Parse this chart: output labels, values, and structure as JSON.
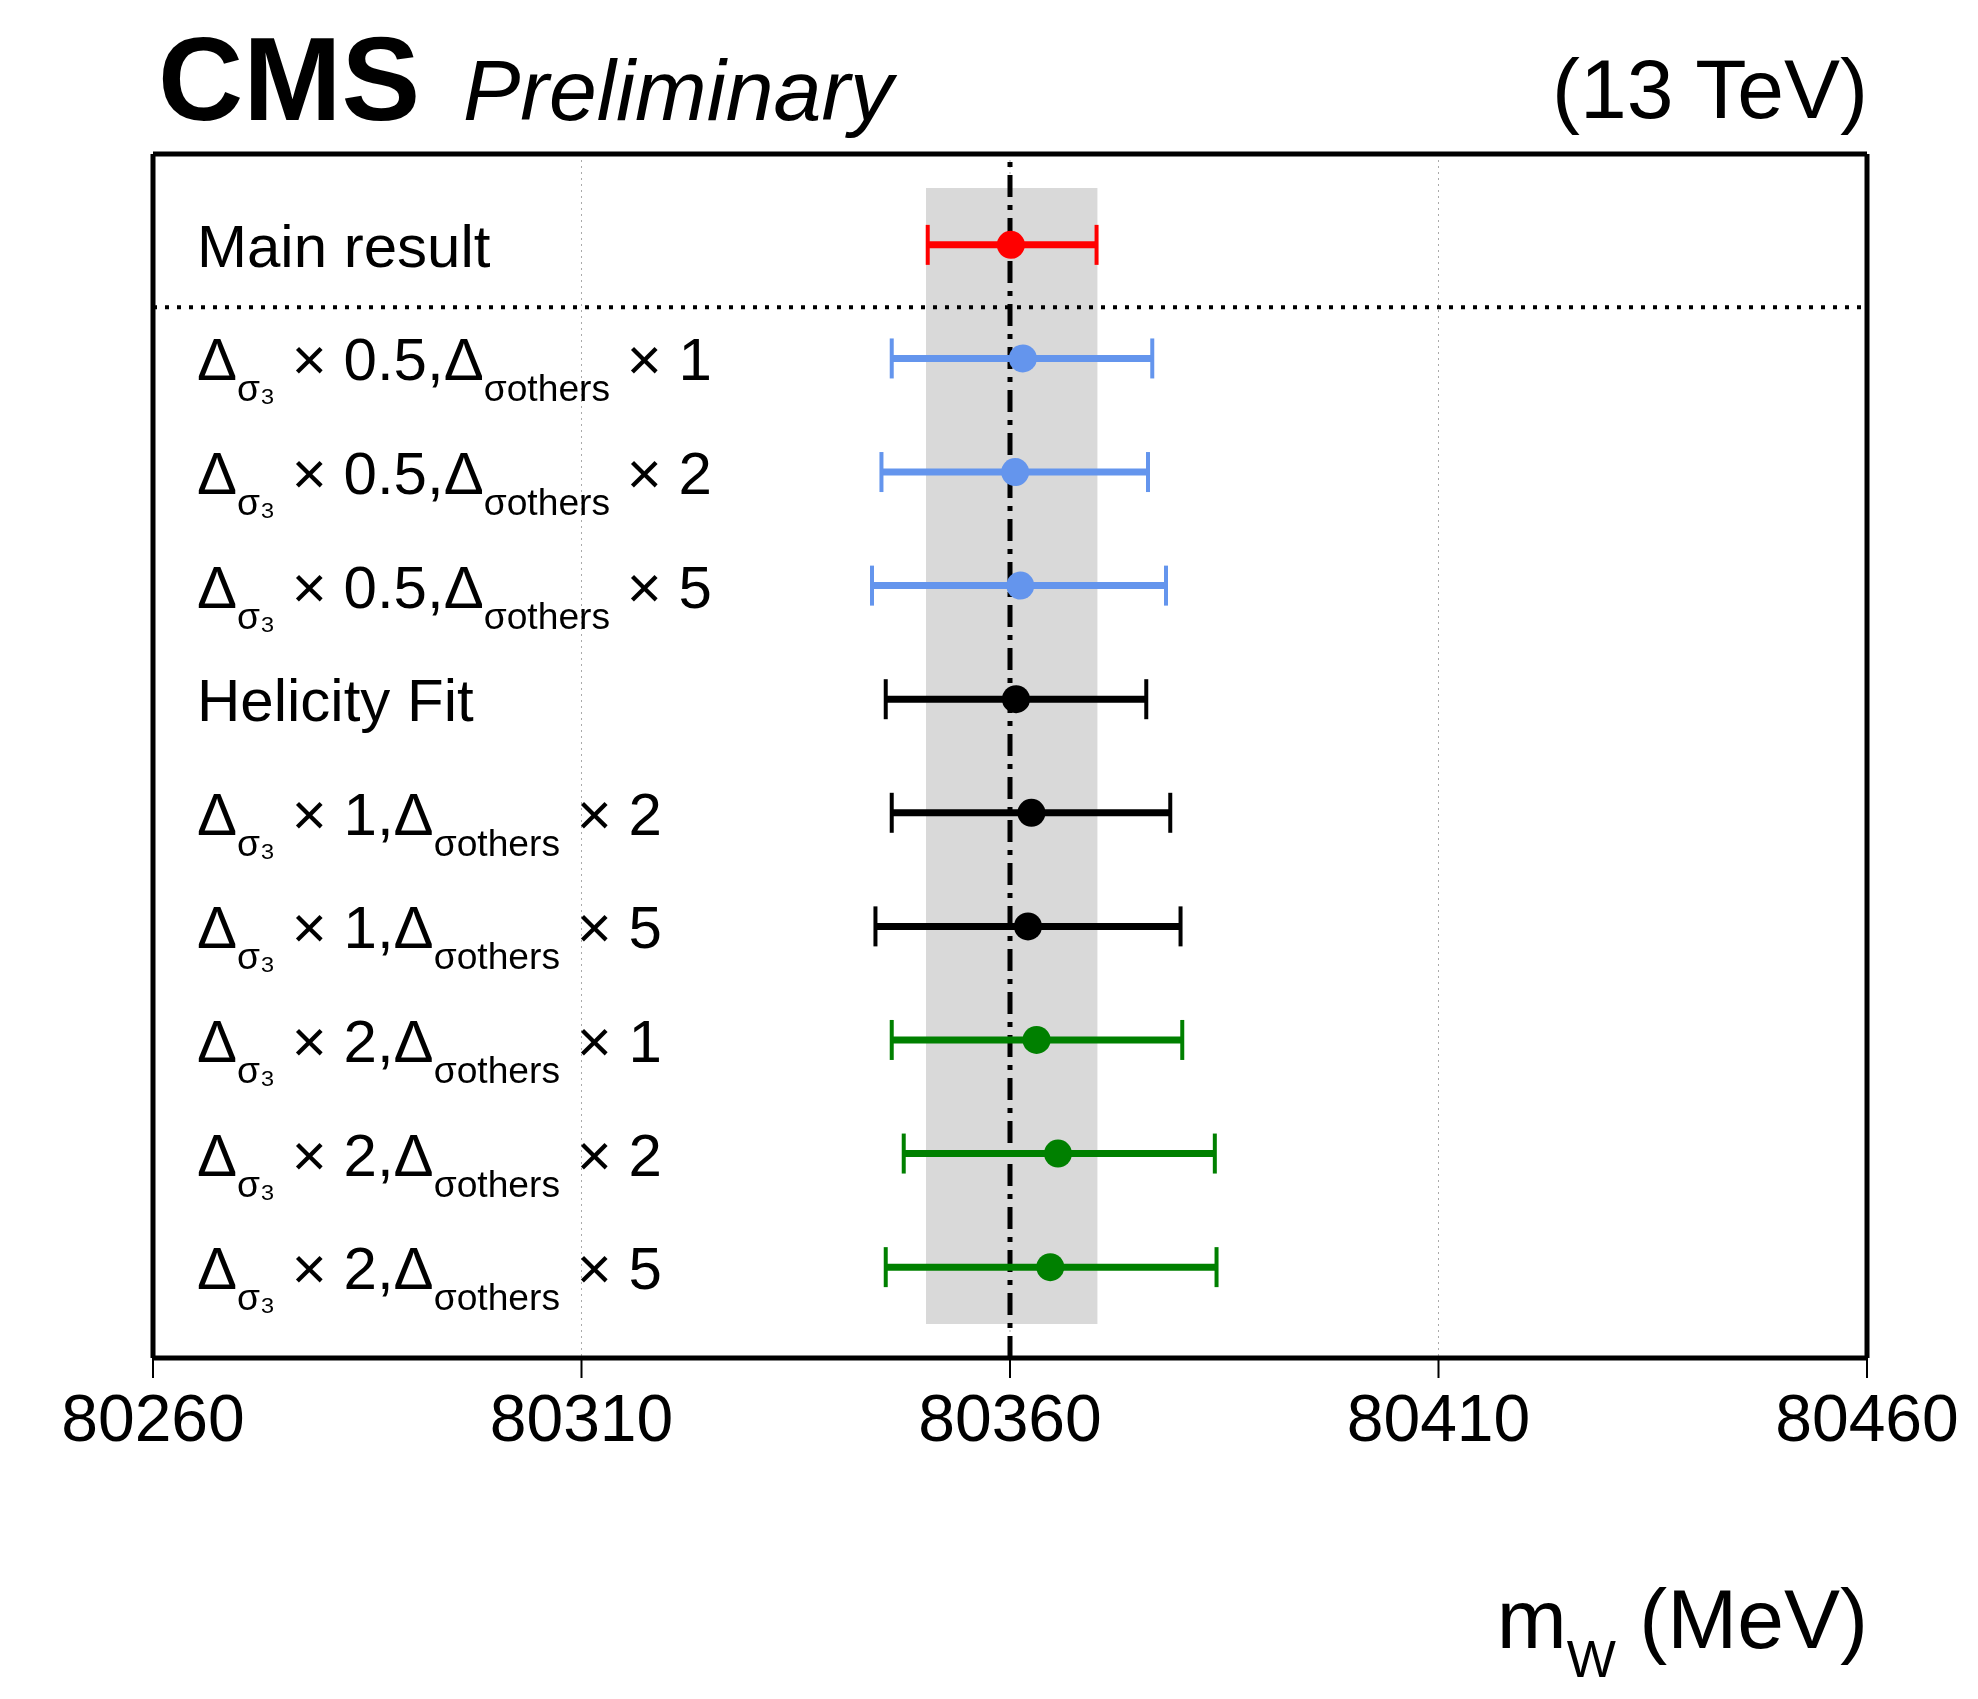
{
  "chart_data": {
    "type": "scatter",
    "orientation": "horizontal",
    "title": "CMS",
    "subtitle": "Preliminary",
    "xlabel": "m$_{W}$ (MeV)",
    "annotations": [
      "(13 TeV)"
    ],
    "categories": [
      "Main result",
      "Δ$_{σ₃}$ × 0.5,Δ$_{σothers}$ × 1",
      "Δ$_{σ₃}$ × 0.5,Δ$_{σothers}$ × 2",
      "Δ$_{σ₃}$ × 0.5,Δ$_{σothers}$ × 5",
      "Helicity Fit",
      "Δ$_{σ₃}$ × 1,Δ$_{σothers}$ × 2",
      "Δ$_{σ₃}$ × 1,Δ$_{σothers}$ × 5",
      "Δ$_{σ₃}$ × 2,Δ$_{σothers}$ × 1",
      "Δ$_{σ₃}$ × 2,Δ$_{σothers}$ × 2",
      "Δ$_{σ₃}$ × 2,Δ$_{σothers}$ × 5"
    ],
    "series": [
      {
        "color": "#ff0000",
        "values": [
          80360.1,
          null,
          null,
          null,
          null,
          null,
          null,
          null,
          null,
          null
        ],
        "errors": [
          [
            80350.4,
            80370.1
          ],
          null,
          null,
          null,
          null,
          null,
          null,
          null,
          null,
          null
        ]
      },
      {
        "color": "#6495ed",
        "values": [
          null,
          80361.5,
          80360.6,
          80361.2,
          null,
          null,
          null,
          null,
          null,
          null
        ],
        "errors": [
          null,
          [
            80346.2,
            80376.6
          ],
          [
            80345.0,
            80376.1
          ],
          [
            80343.9,
            80378.2
          ],
          null,
          null,
          null,
          null,
          null,
          null
        ]
      },
      {
        "color": "#000000",
        "values": [
          null,
          null,
          null,
          null,
          80360.7,
          80362.5,
          80362.1,
          null,
          null,
          null
        ],
        "errors": [
          null,
          null,
          null,
          null,
          [
            80345.5,
            80375.9
          ],
          [
            80346.2,
            80378.7
          ],
          [
            80344.3,
            80379.9
          ],
          null,
          null,
          null
        ]
      },
      {
        "color": "#008000",
        "values": [
          null,
          null,
          null,
          null,
          null,
          null,
          null,
          80363.1,
          80365.6,
          80364.7
        ],
        "errors": [
          null,
          null,
          null,
          null,
          null,
          null,
          null,
          [
            80346.2,
            80380.1
          ],
          [
            80347.6,
            80383.9
          ],
          [
            80345.5,
            80384.1
          ]
        ]
      }
    ],
    "xlim": [
      80260,
      80460
    ],
    "xticks": [
      80260,
      80310,
      80360,
      80410,
      80460
    ],
    "ref_lines": [
      {
        "axis": "x",
        "value": 80360,
        "color": "#000000",
        "line_style": "dashdot"
      },
      {
        "axis": "y",
        "value": "Main result",
        "color": "#000000",
        "line_style": "dotted"
      }
    ],
    "bands": [
      {
        "axis": "x",
        "from": 80350.2,
        "to": 80370.2,
        "color": "#d9d9d9"
      }
    ],
    "grid": "x",
    "marker": "circle"
  }
}
